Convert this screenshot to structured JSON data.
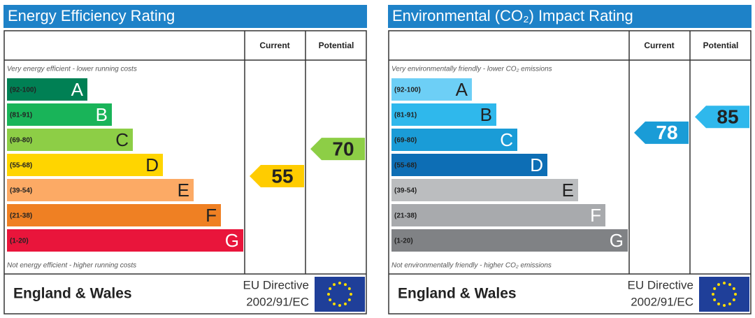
{
  "panels": [
    {
      "title": "Energy Efficiency Rating",
      "header": {
        "current": "Current",
        "potential": "Potential"
      },
      "top_note": "Very energy efficient - lower running costs",
      "bottom_note": "Not energy efficient - higher running costs",
      "bands": [
        {
          "range": "(92-100)",
          "letter": "A",
          "color": "#008054",
          "text_color": "#ffffff"
        },
        {
          "range": "(81-91)",
          "letter": "B",
          "color": "#19b459",
          "text_color": "#ffffff"
        },
        {
          "range": "(69-80)",
          "letter": "C",
          "color": "#8dce46",
          "text_color": "#222222"
        },
        {
          "range": "(55-68)",
          "letter": "D",
          "color": "#ffd500",
          "text_color": "#222222"
        },
        {
          "range": "(39-54)",
          "letter": "E",
          "color": "#fcaa65",
          "text_color": "#222222"
        },
        {
          "range": "(21-38)",
          "letter": "F",
          "color": "#ef8023",
          "text_color": "#222222"
        },
        {
          "range": "(1-20)",
          "letter": "G",
          "color": "#e9153b",
          "text_color": "#ffffff"
        }
      ],
      "current": {
        "value": 55,
        "color": "#ffcc00",
        "text_color": "#222222"
      },
      "potential": {
        "value": 70,
        "color": "#8dce46",
        "text_color": "#222222"
      },
      "footer": {
        "region": "England & Wales",
        "directive": "EU Directive",
        "code": "2002/91/EC"
      }
    },
    {
      "title": "Environmental (CO₂) Impact Rating",
      "header": {
        "current": "Current",
        "potential": "Potential"
      },
      "top_note": "Very environmentally friendly - lower CO₂ emissions",
      "bottom_note": "Not environmentally friendly - higher CO₂ emissions",
      "bands": [
        {
          "range": "(92-100)",
          "letter": "A",
          "color": "#6dcff6",
          "text_color": "#222222"
        },
        {
          "range": "(81-91)",
          "letter": "B",
          "color": "#2fb8ec",
          "text_color": "#222222"
        },
        {
          "range": "(69-80)",
          "letter": "C",
          "color": "#1a9cd7",
          "text_color": "#ffffff"
        },
        {
          "range": "(55-68)",
          "letter": "D",
          "color": "#0d6eb5",
          "text_color": "#ffffff"
        },
        {
          "range": "(39-54)",
          "letter": "E",
          "color": "#bbbdbf",
          "text_color": "#222222"
        },
        {
          "range": "(21-38)",
          "letter": "F",
          "color": "#a8aaad",
          "text_color": "#ffffff"
        },
        {
          "range": "(1-20)",
          "letter": "G",
          "color": "#808285",
          "text_color": "#ffffff"
        }
      ],
      "current": {
        "value": 78,
        "color": "#1a9cd7",
        "text_color": "#ffffff"
      },
      "potential": {
        "value": 85,
        "color": "#2fb8ec",
        "text_color": "#222222"
      },
      "footer": {
        "region": "England & Wales",
        "directive": "EU Directive",
        "code": "2002/91/EC"
      }
    }
  ]
}
